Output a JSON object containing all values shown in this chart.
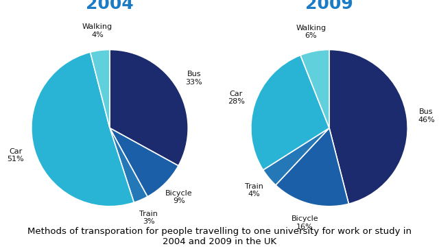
{
  "title_2004": "2004",
  "title_2009": "2009",
  "title_color": "#1B7BC4",
  "caption": "Methods of transporation for people travelling to one university for work or study in\n2004 and 2009 in the UK",
  "caption_fontsize": 9.5,
  "title_fontsize": 18,
  "label_fontsize": 8,
  "labels": [
    "Bus",
    "Bicycle",
    "Train",
    "Car",
    "Walking"
  ],
  "colors": {
    "Bus": "#1C2A6E",
    "Bicycle": "#1A5FA8",
    "Train": "#2478B8",
    "Car": "#29B4D6",
    "Walking": "#5FD0DC"
  },
  "data_2004": {
    "Bus": 33,
    "Bicycle": 9,
    "Train": 3,
    "Car": 51,
    "Walking": 4
  },
  "data_2009": {
    "Bus": 46,
    "Bicycle": 16,
    "Train": 4,
    "Car": 28,
    "Walking": 6
  }
}
